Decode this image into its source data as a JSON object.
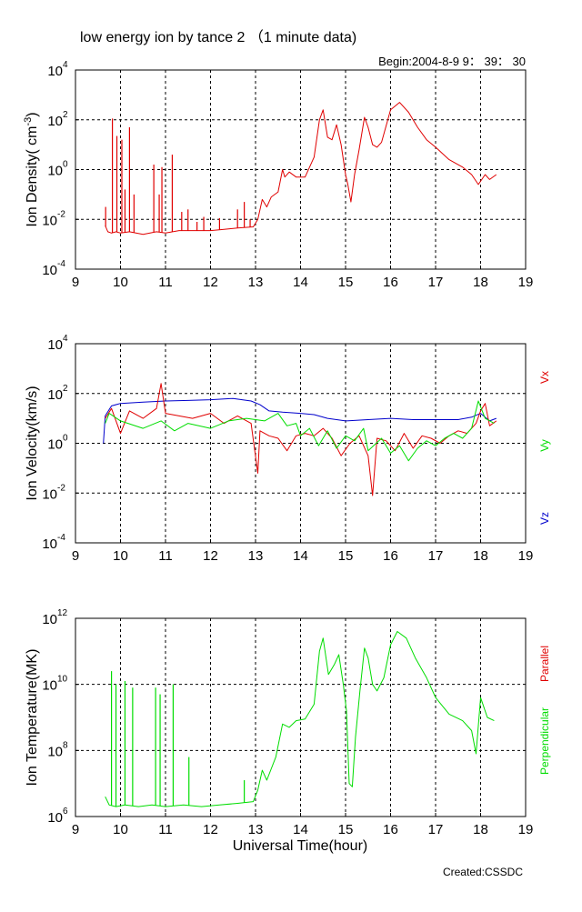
{
  "header": {
    "title": "low energy ion by tance 2 （1 minute data)",
    "begin": "Begin:2004-8-9    9： 39： 30"
  },
  "footer": {
    "created": "Created:CSSDC"
  },
  "colors": {
    "red": "#e00000",
    "green": "#00dd00",
    "blue": "#0000cc",
    "grid": "#000000"
  },
  "x_axis": {
    "label": "Universal Time(hour)",
    "range": [
      9,
      19
    ],
    "ticks": [
      "9",
      "10",
      "11",
      "12",
      "13",
      "14",
      "15",
      "16",
      "17",
      "18",
      "19"
    ]
  },
  "chart_data": [
    {
      "type": "line",
      "ylabel": "Ion Density( cm⁻³)",
      "ylabel_base": "Ion Density( cm",
      "ylabel_sup": "-3",
      "ylabel_tail": ")",
      "y_scale": "log",
      "ylim_exp": [
        -4,
        4
      ],
      "ytick_exps": [
        "-4",
        "-2",
        "0",
        "2",
        "4"
      ],
      "grid": true,
      "legend": [],
      "series": [
        {
          "color": "red",
          "points": [
            [
              9.66,
              -2.25
            ],
            [
              9.72,
              -2.5
            ],
            [
              9.8,
              -2.55
            ],
            [
              9.9,
              -2.5
            ],
            [
              10.0,
              -2.55
            ],
            [
              10.2,
              -2.5
            ],
            [
              10.5,
              -2.6
            ],
            [
              10.8,
              -2.5
            ],
            [
              11.0,
              -2.55
            ],
            [
              11.3,
              -2.45
            ],
            [
              11.6,
              -2.45
            ],
            [
              12.0,
              -2.45
            ],
            [
              12.3,
              -2.4
            ],
            [
              12.6,
              -2.35
            ],
            [
              12.95,
              -2.3
            ],
            [
              13.05,
              -2.0
            ],
            [
              13.15,
              -1.2
            ],
            [
              13.25,
              -1.5
            ],
            [
              13.35,
              -1.1
            ],
            [
              13.5,
              -0.9
            ],
            [
              13.6,
              0.0
            ],
            [
              13.65,
              -0.3
            ],
            [
              13.75,
              -0.1
            ],
            [
              13.9,
              -0.3
            ],
            [
              14.1,
              -0.3
            ],
            [
              14.3,
              0.5
            ],
            [
              14.42,
              2.0
            ],
            [
              14.5,
              2.4
            ],
            [
              14.6,
              1.3
            ],
            [
              14.7,
              1.2
            ],
            [
              14.8,
              1.8
            ],
            [
              14.9,
              1.0
            ],
            [
              15.0,
              -0.2
            ],
            [
              15.05,
              -0.6
            ],
            [
              15.12,
              -1.3
            ],
            [
              15.2,
              -0.2
            ],
            [
              15.3,
              0.8
            ],
            [
              15.42,
              2.1
            ],
            [
              15.5,
              1.7
            ],
            [
              15.6,
              1.0
            ],
            [
              15.7,
              0.9
            ],
            [
              15.8,
              1.1
            ],
            [
              16.0,
              2.4
            ],
            [
              16.2,
              2.7
            ],
            [
              16.4,
              2.3
            ],
            [
              16.6,
              1.7
            ],
            [
              16.8,
              1.2
            ],
            [
              17.0,
              0.9
            ],
            [
              17.3,
              0.4
            ],
            [
              17.6,
              0.1
            ],
            [
              17.8,
              -0.2
            ],
            [
              17.95,
              -0.6
            ],
            [
              18.1,
              -0.2
            ],
            [
              18.2,
              -0.4
            ],
            [
              18.35,
              -0.2
            ]
          ],
          "spikes": [
            [
              9.67,
              -1.5
            ],
            [
              9.82,
              2.05
            ],
            [
              9.92,
              1.35
            ],
            [
              10.03,
              1.2
            ],
            [
              10.1,
              -0.8
            ],
            [
              10.2,
              1.7
            ],
            [
              10.3,
              -1.0
            ],
            [
              10.74,
              0.2
            ],
            [
              10.86,
              -1.0
            ],
            [
              10.92,
              0.1
            ],
            [
              11.15,
              0.6
            ],
            [
              11.36,
              -1.7
            ],
            [
              11.5,
              -1.6
            ],
            [
              11.7,
              -2.1
            ],
            [
              11.85,
              -1.9
            ],
            [
              12.2,
              -1.95
            ],
            [
              12.6,
              -1.6
            ],
            [
              12.75,
              -1.3
            ],
            [
              12.88,
              -2.0
            ]
          ]
        }
      ]
    },
    {
      "type": "line",
      "ylabel": "Ion Velocity(km/s)",
      "y_scale": "log",
      "ylim_exp": [
        -4,
        4
      ],
      "ytick_exps": [
        "-4",
        "-2",
        "0",
        "2",
        "4"
      ],
      "grid": true,
      "legend": [
        {
          "name": "Vx",
          "color": "red"
        },
        {
          "name": "Vy",
          "color": "green"
        },
        {
          "name": "Vz",
          "color": "blue"
        }
      ],
      "series": [
        {
          "name": "Vz",
          "color": "blue",
          "points": [
            [
              9.62,
              0.0
            ],
            [
              9.66,
              1.1
            ],
            [
              9.8,
              1.5
            ],
            [
              10.0,
              1.6
            ],
            [
              10.5,
              1.65
            ],
            [
              11.0,
              1.7
            ],
            [
              11.5,
              1.72
            ],
            [
              12.0,
              1.75
            ],
            [
              12.5,
              1.8
            ],
            [
              12.9,
              1.7
            ],
            [
              13.1,
              1.55
            ],
            [
              13.3,
              1.3
            ],
            [
              13.6,
              1.25
            ],
            [
              14.0,
              1.2
            ],
            [
              14.3,
              1.15
            ],
            [
              14.6,
              1.0
            ],
            [
              14.8,
              0.95
            ],
            [
              15.0,
              0.9
            ],
            [
              15.5,
              0.95
            ],
            [
              16.0,
              1.0
            ],
            [
              16.5,
              0.95
            ],
            [
              17.0,
              0.95
            ],
            [
              17.5,
              0.95
            ],
            [
              17.8,
              1.05
            ],
            [
              18.0,
              1.2
            ],
            [
              18.2,
              0.9
            ],
            [
              18.35,
              1.0
            ]
          ]
        },
        {
          "name": "Vx",
          "color": "red",
          "points": [
            [
              9.66,
              1.0
            ],
            [
              9.8,
              1.4
            ],
            [
              10.0,
              0.4
            ],
            [
              10.2,
              1.3
            ],
            [
              10.5,
              1.0
            ],
            [
              10.8,
              1.4
            ],
            [
              10.9,
              2.4
            ],
            [
              11.0,
              1.2
            ],
            [
              11.3,
              1.1
            ],
            [
              11.6,
              1.0
            ],
            [
              12.0,
              1.2
            ],
            [
              12.3,
              0.8
            ],
            [
              12.6,
              1.1
            ],
            [
              12.9,
              0.8
            ],
            [
              13.05,
              -1.2
            ],
            [
              13.1,
              0.5
            ],
            [
              13.3,
              0.3
            ],
            [
              13.5,
              0.2
            ],
            [
              13.7,
              -0.3
            ],
            [
              13.9,
              0.3
            ],
            [
              14.1,
              0.4
            ],
            [
              14.3,
              0.3
            ],
            [
              14.5,
              0.6
            ],
            [
              14.7,
              0.2
            ],
            [
              14.9,
              -0.5
            ],
            [
              15.1,
              0.0
            ],
            [
              15.3,
              0.3
            ],
            [
              15.5,
              -0.5
            ],
            [
              15.6,
              -2.1
            ],
            [
              15.7,
              0.2
            ],
            [
              15.9,
              0.1
            ],
            [
              16.1,
              -0.3
            ],
            [
              16.3,
              0.4
            ],
            [
              16.5,
              -0.2
            ],
            [
              16.7,
              0.3
            ],
            [
              16.9,
              0.2
            ],
            [
              17.1,
              0.0
            ],
            [
              17.3,
              0.3
            ],
            [
              17.5,
              0.5
            ],
            [
              17.7,
              0.4
            ],
            [
              17.9,
              0.8
            ],
            [
              18.0,
              1.3
            ],
            [
              18.1,
              1.6
            ],
            [
              18.2,
              0.7
            ],
            [
              18.35,
              0.9
            ]
          ]
        },
        {
          "name": "Vy",
          "color": "green",
          "points": [
            [
              9.66,
              0.8
            ],
            [
              9.75,
              1.2
            ],
            [
              10.0,
              0.9
            ],
            [
              10.5,
              0.6
            ],
            [
              10.9,
              0.9
            ],
            [
              11.2,
              0.5
            ],
            [
              11.5,
              0.8
            ],
            [
              12.0,
              0.6
            ],
            [
              12.4,
              0.9
            ],
            [
              12.8,
              1.0
            ],
            [
              13.2,
              0.9
            ],
            [
              13.5,
              1.2
            ],
            [
              13.7,
              0.7
            ],
            [
              13.9,
              0.8
            ],
            [
              14.0,
              0.3
            ],
            [
              14.2,
              0.6
            ],
            [
              14.4,
              -0.1
            ],
            [
              14.6,
              0.5
            ],
            [
              14.8,
              -0.2
            ],
            [
              15.0,
              0.3
            ],
            [
              15.2,
              0.1
            ],
            [
              15.4,
              0.6
            ],
            [
              15.5,
              -0.3
            ],
            [
              15.8,
              0.2
            ],
            [
              16.0,
              -0.4
            ],
            [
              16.2,
              -0.1
            ],
            [
              16.4,
              -0.7
            ],
            [
              16.6,
              -0.2
            ],
            [
              16.8,
              0.1
            ],
            [
              17.0,
              -0.1
            ],
            [
              17.2,
              0.2
            ],
            [
              17.4,
              0.4
            ],
            [
              17.6,
              0.2
            ],
            [
              17.8,
              0.6
            ],
            [
              17.95,
              1.7
            ],
            [
              18.1,
              1.0
            ],
            [
              18.3,
              0.8
            ]
          ]
        }
      ]
    },
    {
      "type": "line",
      "ylabel": "Ion Temperature(MK)",
      "y_scale": "log",
      "ylim_exp": [
        6,
        12
      ],
      "ytick_exps": [
        "6",
        "8",
        "10",
        "12"
      ],
      "grid": true,
      "legend": [
        {
          "name": "Parallel",
          "color": "red"
        },
        {
          "name": "Perpendicular",
          "color": "green"
        }
      ],
      "series": [
        {
          "name": "Perpendicular",
          "color": "green",
          "points": [
            [
              9.66,
              6.6
            ],
            [
              9.75,
              6.35
            ],
            [
              9.9,
              6.3
            ],
            [
              10.1,
              6.35
            ],
            [
              10.4,
              6.3
            ],
            [
              10.7,
              6.35
            ],
            [
              11.0,
              6.3
            ],
            [
              11.4,
              6.35
            ],
            [
              11.8,
              6.3
            ],
            [
              12.2,
              6.35
            ],
            [
              12.6,
              6.4
            ],
            [
              12.95,
              6.45
            ],
            [
              13.05,
              6.8
            ],
            [
              13.15,
              7.4
            ],
            [
              13.25,
              7.1
            ],
            [
              13.45,
              7.8
            ],
            [
              13.6,
              8.8
            ],
            [
              13.75,
              8.7
            ],
            [
              13.9,
              8.9
            ],
            [
              14.1,
              8.95
            ],
            [
              14.3,
              9.4
            ],
            [
              14.42,
              11.0
            ],
            [
              14.5,
              11.4
            ],
            [
              14.62,
              10.3
            ],
            [
              14.75,
              10.6
            ],
            [
              14.85,
              10.9
            ],
            [
              14.95,
              10.0
            ],
            [
              15.02,
              9.2
            ],
            [
              15.08,
              7.0
            ],
            [
              15.15,
              6.9
            ],
            [
              15.22,
              8.4
            ],
            [
              15.32,
              9.8
            ],
            [
              15.42,
              11.1
            ],
            [
              15.5,
              10.8
            ],
            [
              15.6,
              10.0
            ],
            [
              15.7,
              9.8
            ],
            [
              15.85,
              10.2
            ],
            [
              16.0,
              11.2
            ],
            [
              16.15,
              11.6
            ],
            [
              16.35,
              11.4
            ],
            [
              16.55,
              10.8
            ],
            [
              16.8,
              10.2
            ],
            [
              17.0,
              9.6
            ],
            [
              17.3,
              9.1
            ],
            [
              17.6,
              8.9
            ],
            [
              17.8,
              8.6
            ],
            [
              17.9,
              7.9
            ],
            [
              18.0,
              9.6
            ],
            [
              18.15,
              9.0
            ],
            [
              18.3,
              8.9
            ]
          ],
          "spikes": [
            [
              9.8,
              10.4
            ],
            [
              9.9,
              10.0
            ],
            [
              10.1,
              10.1
            ],
            [
              10.27,
              9.9
            ],
            [
              10.78,
              9.9
            ],
            [
              10.88,
              9.7
            ],
            [
              11.17,
              10.0
            ],
            [
              11.52,
              7.8
            ],
            [
              12.75,
              7.1
            ]
          ]
        }
      ]
    }
  ]
}
